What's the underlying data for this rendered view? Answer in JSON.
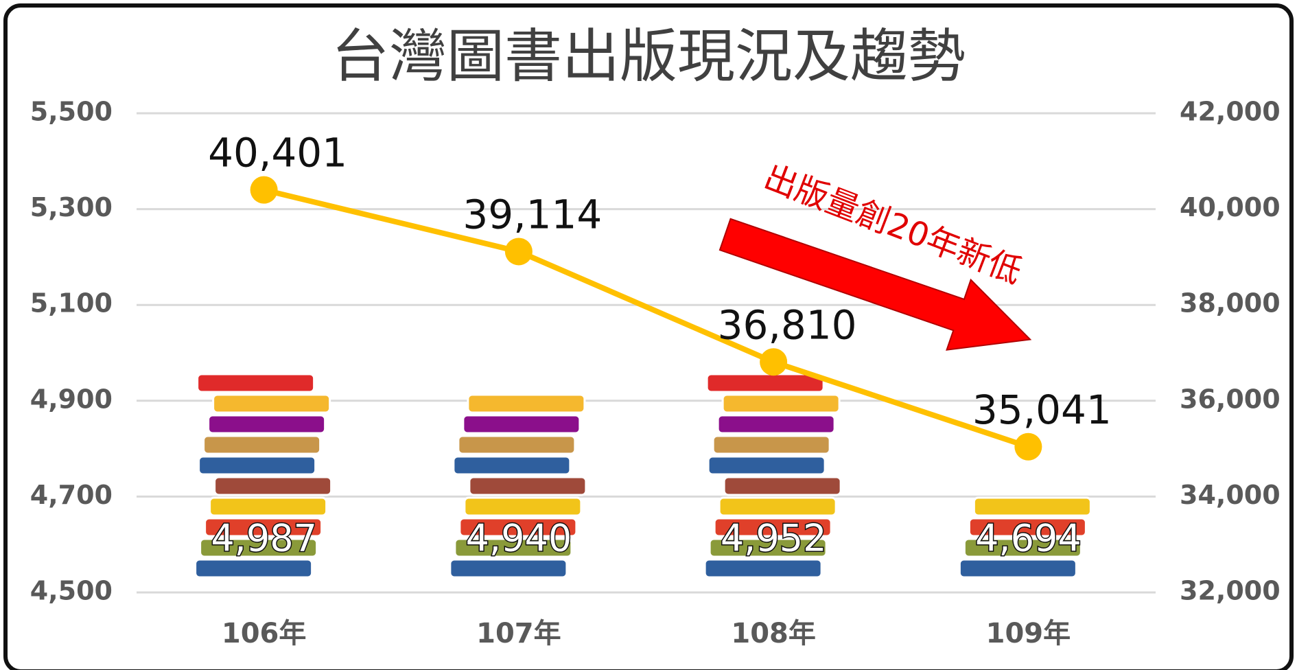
{
  "chart_data": {
    "type": "bar-line",
    "title": "台灣圖書出版現況及趨勢",
    "categories": [
      "106年",
      "107年",
      "108年",
      "109年"
    ],
    "series": [
      {
        "type": "bar",
        "color": "#c8964a",
        "values": [
          4987,
          4940,
          4952,
          4694
        ],
        "value_labels": [
          "4,987",
          "4,940",
          "4,952",
          "4,694"
        ]
      },
      {
        "type": "line",
        "axis": "y2",
        "color": "#ffc000",
        "values": [
          40401,
          39114,
          36810,
          35041
        ],
        "value_labels": [
          "40,401",
          "39,114",
          "36,810",
          "35,041"
        ]
      }
    ],
    "ylim": [
      4500,
      5500
    ],
    "yticks": [
      {
        "value": 4500,
        "label": "4,500"
      },
      {
        "value": 4700,
        "label": "4,700"
      },
      {
        "value": 4900,
        "label": "4,900"
      },
      {
        "value": 5100,
        "label": "5,100"
      },
      {
        "value": 5300,
        "label": "5,300"
      },
      {
        "value": 5500,
        "label": "5,500"
      }
    ],
    "y2lim": [
      32000,
      42000
    ],
    "y2ticks": [
      {
        "value": 32000,
        "label": "32,000"
      },
      {
        "value": 34000,
        "label": "34,000"
      },
      {
        "value": 36000,
        "label": "36,000"
      },
      {
        "value": 38000,
        "label": "38,000"
      },
      {
        "value": 40000,
        "label": "40,000"
      },
      {
        "value": 42000,
        "label": "42,000"
      }
    ],
    "grid": true,
    "annotation": "出版量創20年新低"
  }
}
